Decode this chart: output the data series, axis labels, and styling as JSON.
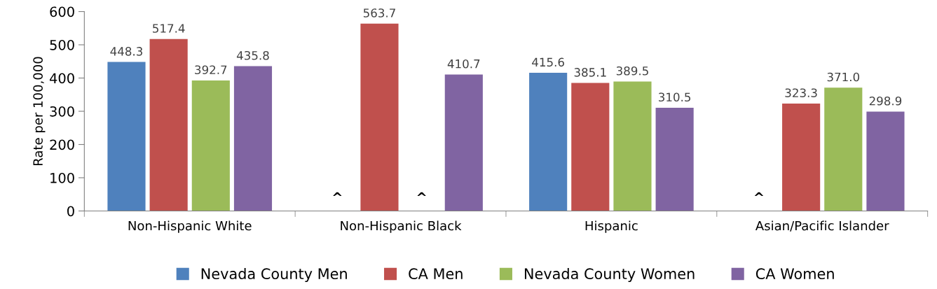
{
  "chart_data": {
    "type": "bar",
    "ylabel": "Rate per 100,000",
    "categories": [
      "Non-Hispanic White",
      "Non-Hispanic Black",
      "Hispanic",
      "Asian/Pacific Islander"
    ],
    "series": [
      {
        "name": "Nevada County Men",
        "color": "#4f81bd",
        "values": [
          448.3,
          null,
          415.6,
          null
        ],
        "value_labels": [
          "448.3",
          "^",
          "415.6",
          "^"
        ]
      },
      {
        "name": "CA Men",
        "color": "#c0504d",
        "values": [
          517.4,
          563.7,
          385.1,
          323.3
        ],
        "value_labels": [
          "517.4",
          "563.7",
          "385.1",
          "323.3"
        ]
      },
      {
        "name": "Nevada County Women",
        "color": "#9bbb59",
        "values": [
          392.7,
          null,
          389.5,
          371.0
        ],
        "value_labels": [
          "392.7",
          "^",
          "389.5",
          "371.0"
        ]
      },
      {
        "name": "CA Women",
        "color": "#8064a2",
        "values": [
          435.8,
          410.7,
          310.5,
          298.9
        ],
        "value_labels": [
          "435.8",
          "410.7",
          "310.5",
          "298.9"
        ]
      }
    ],
    "ylim": [
      0,
      600
    ],
    "yticks": [
      0,
      100,
      200,
      300,
      400,
      500,
      600
    ],
    "grid": false,
    "legend": "bottom"
  }
}
